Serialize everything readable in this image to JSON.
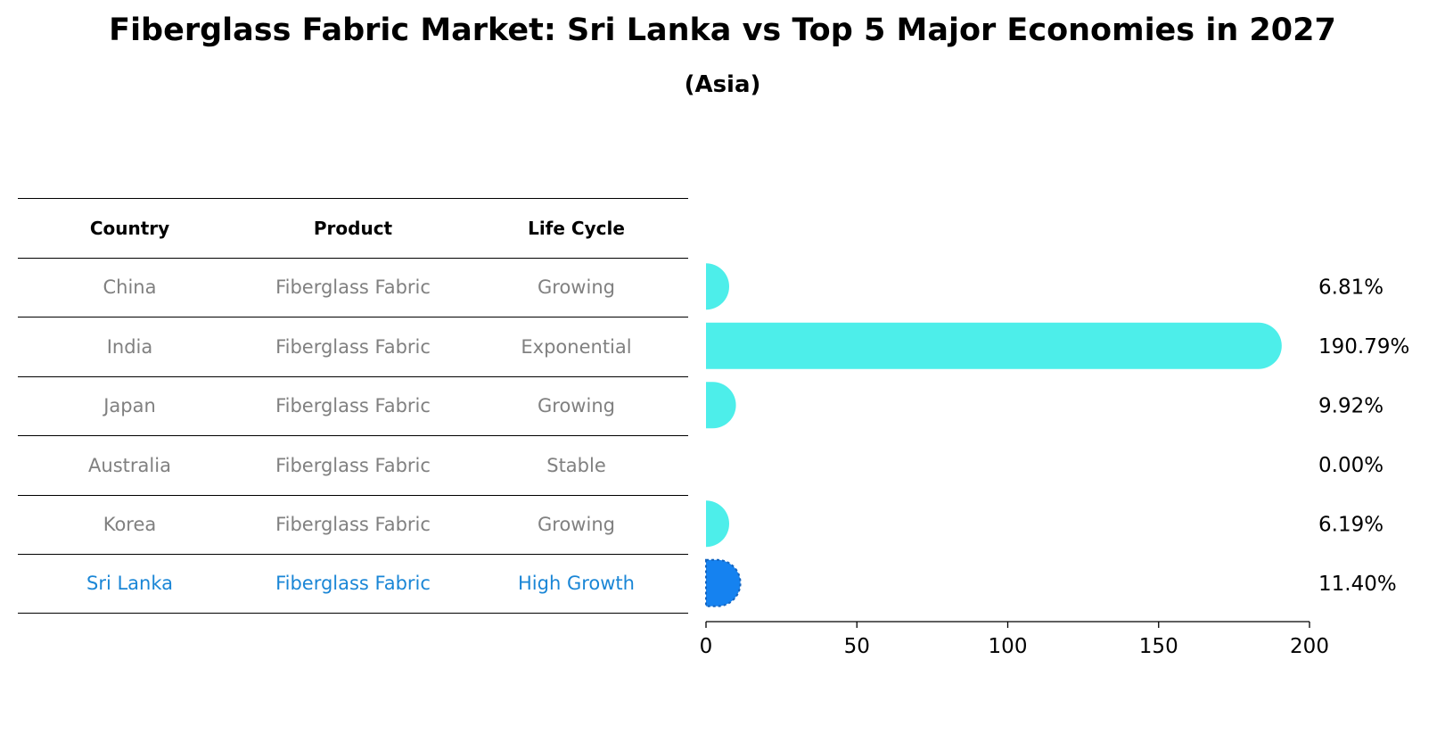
{
  "title": "Fiberglass Fabric Market: Sri Lanka vs Top 5 Major Economies in 2027",
  "subtitle": "(Asia)",
  "table": {
    "headers": [
      "Country",
      "Product",
      "Life Cycle"
    ],
    "rows": [
      {
        "country": "China",
        "product": "Fiberglass Fabric",
        "life_cycle": "Growing"
      },
      {
        "country": "India",
        "product": "Fiberglass Fabric",
        "life_cycle": "Exponential"
      },
      {
        "country": "Japan",
        "product": "Fiberglass Fabric",
        "life_cycle": "Growing"
      },
      {
        "country": "Australia",
        "product": "Fiberglass Fabric",
        "life_cycle": "Stable"
      },
      {
        "country": "Korea",
        "product": "Fiberglass Fabric",
        "life_cycle": "Growing"
      },
      {
        "country": "Sri Lanka",
        "product": "Fiberglass Fabric",
        "life_cycle": "High Growth"
      }
    ]
  },
  "chart_data": {
    "type": "bar",
    "orientation": "horizontal",
    "title": "Fiberglass Fabric Market: Sri Lanka vs Top 5 Major Economies in 2027",
    "subtitle": "(Asia)",
    "categories": [
      "China",
      "India",
      "Japan",
      "Australia",
      "Korea",
      "Sri Lanka"
    ],
    "values": [
      6.81,
      190.79,
      9.92,
      0.0,
      6.19,
      11.4
    ],
    "value_labels": [
      "6.81%",
      "190.79%",
      "9.92%",
      "0.00%",
      "6.19%",
      "11.40%"
    ],
    "highlight": "Sri Lanka",
    "xlim": [
      0,
      200
    ],
    "xticks": [
      0,
      50,
      100,
      150,
      200
    ],
    "xlabel": "",
    "ylabel": "",
    "grid": false,
    "colors": {
      "default": "#4deeea",
      "highlight": "#1582f0"
    }
  }
}
